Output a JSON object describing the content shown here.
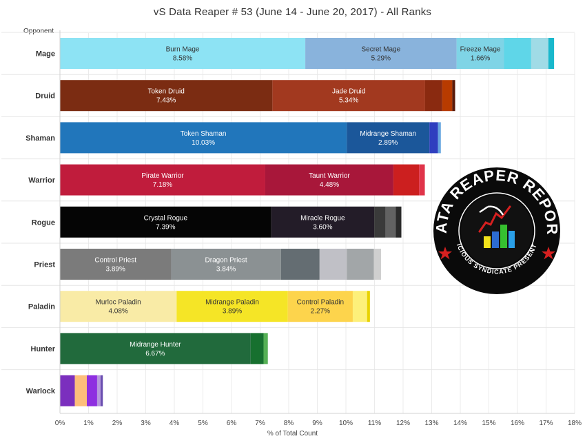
{
  "title": "vS Data Reaper # 53 (June 14 - June 20, 2017) - All Ranks",
  "row_header": "Opponent",
  "logo": {
    "main_text": "DATA REAPER REPORT",
    "sub_text": "VICIOUS SYNDICATE PRESENTS"
  },
  "chart_data": {
    "type": "bar",
    "orientation": "horizontal",
    "stacked": true,
    "title": "vS Data Reaper # 53 (June 14 - June 20, 2017) - All Ranks",
    "xlabel": "% of Total Count",
    "ylabel": "Opponent",
    "xlim": [
      0,
      18
    ],
    "x_ticks": [
      "0%",
      "1%",
      "2%",
      "3%",
      "4%",
      "5%",
      "6%",
      "7%",
      "8%",
      "9%",
      "10%",
      "11%",
      "12%",
      "13%",
      "14%",
      "15%",
      "16%",
      "17%",
      "18%"
    ],
    "grid": true,
    "categories": [
      "Mage",
      "Druid",
      "Shaman",
      "Warrior",
      "Rogue",
      "Priest",
      "Paladin",
      "Hunter",
      "Warlock"
    ],
    "rows": [
      {
        "category": "Mage",
        "segments": [
          {
            "name": "Burn Mage",
            "value": 8.58,
            "label": "8.58%",
            "color": "#8de3f4",
            "text_color": "#333333"
          },
          {
            "name": "Secret Mage",
            "value": 5.29,
            "label": "5.29%",
            "color": "#89b3dc",
            "text_color": "#333333"
          },
          {
            "name": "Freeze Mage",
            "value": 1.66,
            "label": "1.66%",
            "color": "#7fd4e6",
            "text_color": "#333333"
          },
          {
            "name": "",
            "value": 0.95,
            "color": "#5fd6e8"
          },
          {
            "name": "",
            "value": 0.6,
            "color": "#a0dbe6"
          },
          {
            "name": "",
            "value": 0.2,
            "color": "#19b8cc"
          }
        ]
      },
      {
        "category": "Druid",
        "segments": [
          {
            "name": "Token Druid",
            "value": 7.43,
            "label": "7.43%",
            "color": "#7b2c12",
            "text_color": "#ffffff"
          },
          {
            "name": "Jade Druid",
            "value": 5.34,
            "label": "5.34%",
            "color": "#a2391f",
            "text_color": "#ffffff"
          },
          {
            "name": "",
            "value": 0.6,
            "color": "#8a2a10"
          },
          {
            "name": "",
            "value": 0.35,
            "color": "#b83b00"
          },
          {
            "name": "",
            "value": 0.1,
            "color": "#5a1a0a"
          }
        ]
      },
      {
        "category": "Shaman",
        "segments": [
          {
            "name": "Token Shaman",
            "value": 10.03,
            "label": "10.03%",
            "color": "#2176bb",
            "text_color": "#ffffff"
          },
          {
            "name": "Midrange Shaman",
            "value": 2.89,
            "label": "2.89%",
            "color": "#1b579a",
            "text_color": "#ffffff"
          },
          {
            "name": "",
            "value": 0.3,
            "color": "#2f3fbf"
          },
          {
            "name": "",
            "value": 0.1,
            "color": "#67a6e0"
          }
        ]
      },
      {
        "category": "Warrior",
        "segments": [
          {
            "name": "Pirate Warrior",
            "value": 7.18,
            "label": "7.18%",
            "color": "#c01c3c",
            "text_color": "#ffffff"
          },
          {
            "name": "Taunt Warrior",
            "value": 4.48,
            "label": "4.48%",
            "color": "#a8173a",
            "text_color": "#ffffff"
          },
          {
            "name": "",
            "value": 0.9,
            "color": "#cc1f1f"
          },
          {
            "name": "",
            "value": 0.2,
            "color": "#e0344a"
          }
        ]
      },
      {
        "category": "Rogue",
        "segments": [
          {
            "name": "Crystal Rogue",
            "value": 7.39,
            "label": "7.39%",
            "color": "#050505",
            "text_color": "#ffffff"
          },
          {
            "name": "Miracle Rogue",
            "value": 3.6,
            "label": "3.60%",
            "color": "#231c28",
            "text_color": "#ffffff"
          },
          {
            "name": "",
            "value": 0.4,
            "color": "#3a3a3a"
          },
          {
            "name": "",
            "value": 0.35,
            "color": "#626262"
          },
          {
            "name": "",
            "value": 0.2,
            "color": "#2a2a2a"
          }
        ]
      },
      {
        "category": "Priest",
        "segments": [
          {
            "name": "Control Priest",
            "value": 3.89,
            "label": "3.89%",
            "color": "#7b7b7b",
            "text_color": "#ffffff"
          },
          {
            "name": "Dragon Priest",
            "value": 3.84,
            "label": "3.84%",
            "color": "#8b9193",
            "text_color": "#ffffff"
          },
          {
            "name": "",
            "value": 1.35,
            "color": "#646d72"
          },
          {
            "name": "",
            "value": 0.95,
            "color": "#c0c0c6"
          },
          {
            "name": "",
            "value": 0.95,
            "color": "#a2a6a8"
          },
          {
            "name": "",
            "value": 0.25,
            "color": "#cfcfcf"
          }
        ]
      },
      {
        "category": "Paladin",
        "segments": [
          {
            "name": "Murloc Paladin",
            "value": 4.08,
            "label": "4.08%",
            "color": "#f9eba6",
            "text_color": "#333333"
          },
          {
            "name": "Midrange Paladin",
            "value": 3.89,
            "label": "3.89%",
            "color": "#f5e526",
            "text_color": "#333333"
          },
          {
            "name": "Control Paladin",
            "value": 2.27,
            "label": "2.27%",
            "color": "#fdd44c",
            "text_color": "#333333"
          },
          {
            "name": "",
            "value": 0.5,
            "color": "#fdf07a"
          },
          {
            "name": "",
            "value": 0.1,
            "color": "#e8d200"
          }
        ]
      },
      {
        "category": "Hunter",
        "segments": [
          {
            "name": "Midrange Hunter",
            "value": 6.67,
            "label": "6.67%",
            "color": "#216a3c",
            "text_color": "#ffffff"
          },
          {
            "name": "",
            "value": 0.45,
            "color": "#17702f"
          },
          {
            "name": "",
            "value": 0.15,
            "color": "#55b055"
          }
        ]
      },
      {
        "category": "Warlock",
        "segments": [
          {
            "name": "",
            "value": 0.52,
            "color": "#7b2fbe"
          },
          {
            "name": "",
            "value": 0.42,
            "color": "#fdbe7b"
          },
          {
            "name": "",
            "value": 0.36,
            "color": "#8e2fe0"
          },
          {
            "name": "",
            "value": 0.12,
            "color": "#b798dd"
          },
          {
            "name": "",
            "value": 0.08,
            "color": "#6a4fb0"
          }
        ]
      }
    ]
  }
}
